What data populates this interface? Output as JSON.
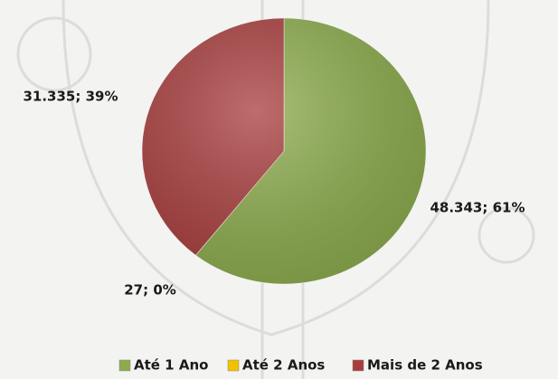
{
  "chart_data": {
    "type": "pie",
    "categories": [
      "Até 1 Ano",
      "Até 2 Anos",
      "Mais de 2 Anos"
    ],
    "values": [
      48343,
      27,
      31335
    ],
    "value_labels": [
      "48.343; 61%",
      "27; 0%",
      "31.335; 39%"
    ],
    "colors": [
      "#8cac4c",
      "#f2c200",
      "#a83c3c"
    ],
    "legend": "bottom"
  }
}
